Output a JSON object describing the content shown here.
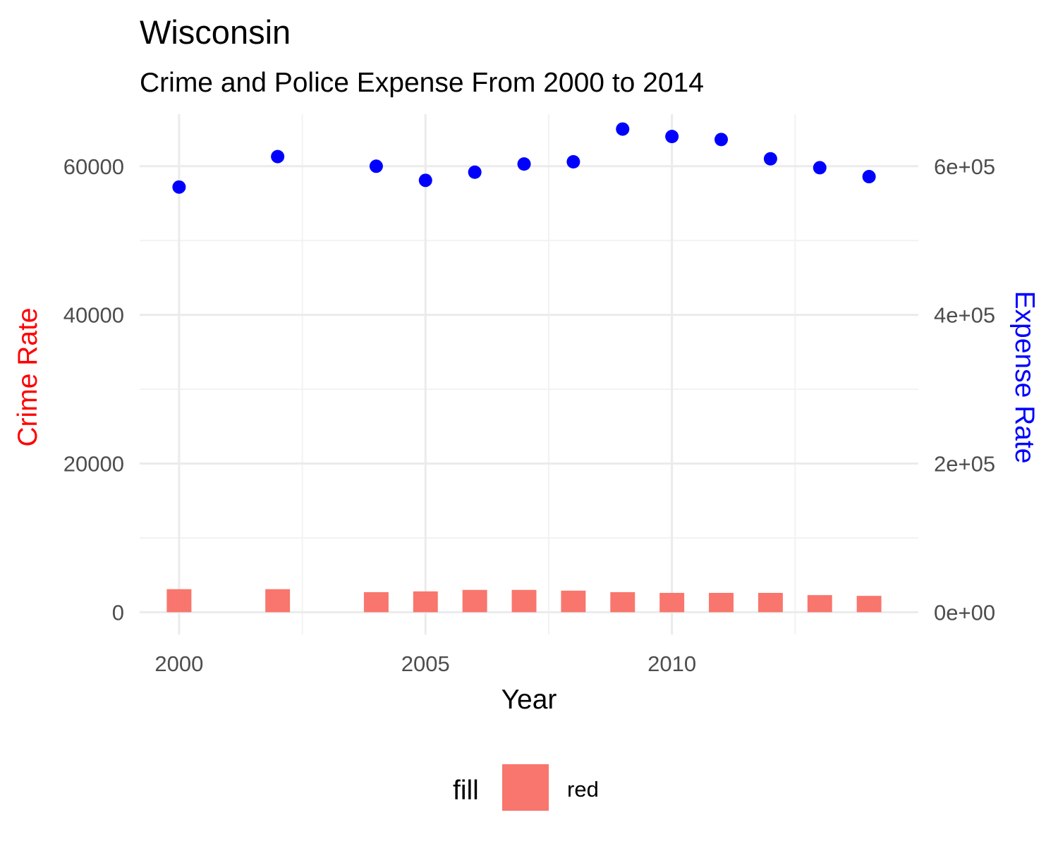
{
  "chart_data": {
    "type": "bar+scatter",
    "title": "Wisconsin",
    "subtitle": "Crime and Police Expense From 2000 to 2014",
    "xlabel": "Year",
    "ylabel": "Crime Rate",
    "ylabel_secondary": "Expense Rate",
    "xlim": [
      1999.2,
      2015
    ],
    "ylim": [
      -3000,
      67000
    ],
    "ylim_secondary": [
      -30000,
      670000
    ],
    "x_ticks": [
      2000,
      2005,
      2010
    ],
    "y_ticks": [
      0,
      20000,
      40000,
      60000
    ],
    "y_tick_labels": [
      "0",
      "20000",
      "40000",
      "60000"
    ],
    "y2_ticks": [
      0,
      200000,
      400000,
      600000
    ],
    "y2_tick_labels": [
      "0e+00",
      "2e+05",
      "4e+05",
      "6e+05"
    ],
    "grid": true,
    "legend": {
      "position": "bottom",
      "title": "fill",
      "label": "red"
    },
    "series": [
      {
        "name": "Crime Rate",
        "kind": "bar",
        "axis": "left",
        "color": "#f8766d",
        "x": [
          2000,
          2002,
          2004,
          2005,
          2006,
          2007,
          2008,
          2009,
          2010,
          2011,
          2012,
          2013,
          2014
        ],
        "values": [
          3100,
          3100,
          2700,
          2800,
          3000,
          3000,
          2900,
          2700,
          2600,
          2600,
          2600,
          2300,
          2200
        ]
      },
      {
        "name": "Expense Rate",
        "kind": "scatter",
        "axis": "right",
        "color": "#0000ff",
        "x": [
          2000,
          2002,
          2004,
          2005,
          2006,
          2007,
          2008,
          2009,
          2010,
          2011,
          2012,
          2013,
          2014
        ],
        "values": [
          572000,
          613000,
          600000,
          581000,
          592000,
          603000,
          606000,
          650000,
          640000,
          636000,
          610000,
          598000,
          586000
        ]
      }
    ],
    "colors": {
      "crime_axis_title": "#ff0000",
      "expense_axis_title": "#0000ff",
      "bar_fill": "#f8766d",
      "point_fill": "#0000ff"
    }
  }
}
